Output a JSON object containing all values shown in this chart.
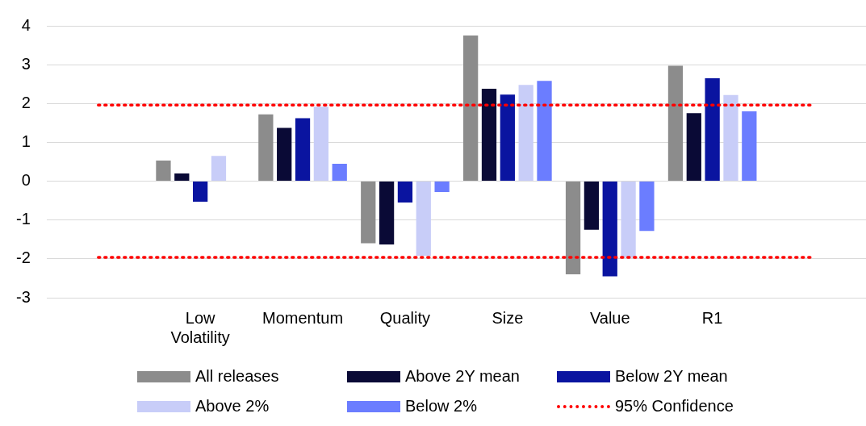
{
  "chart_data": {
    "type": "bar",
    "categories": [
      null,
      "Low Volatility",
      "Momentum",
      "Quality",
      "Size",
      "Value",
      "R1",
      null
    ],
    "series": [
      {
        "name": "All releases",
        "color": "#8c8c8c",
        "values": [
          null,
          0.53,
          1.72,
          -1.6,
          3.75,
          -2.4,
          2.97,
          null
        ]
      },
      {
        "name": "Above 2Y mean",
        "color": "#0a0a36",
        "values": [
          null,
          0.2,
          1.37,
          -1.63,
          2.38,
          -1.25,
          1.75,
          null
        ]
      },
      {
        "name": "Below 2Y mean",
        "color": "#0a14a0",
        "values": [
          null,
          -0.53,
          1.62,
          -0.55,
          2.23,
          -2.45,
          2.65,
          null
        ]
      },
      {
        "name": "Above 2%",
        "color": "#c8cdf8",
        "values": [
          null,
          0.65,
          1.92,
          -1.92,
          2.48,
          -1.97,
          2.22,
          null
        ]
      },
      {
        "name": "Below 2%",
        "color": "#6b7dff",
        "values": [
          null,
          null,
          0.45,
          -0.28,
          2.58,
          -1.28,
          1.8,
          null
        ]
      }
    ],
    "ref_lines": [
      {
        "axis": "y",
        "value": 1.96,
        "label": "95% Confidence",
        "color": "#ff0000",
        "line_style": "dotted"
      },
      {
        "axis": "y",
        "value": -1.96,
        "color": "#ff0000",
        "line_style": "dotted"
      }
    ],
    "ylim": [
      -3,
      4
    ],
    "yticks": [
      -3,
      -2,
      -1,
      0,
      1,
      2,
      3,
      4
    ],
    "grid": "y",
    "legend": "bottom"
  }
}
